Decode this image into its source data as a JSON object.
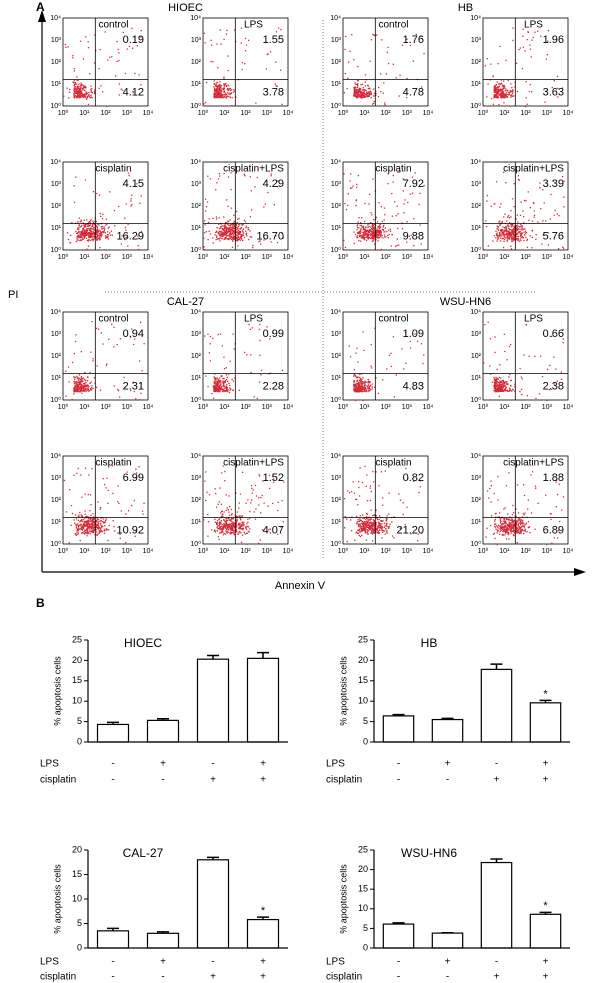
{
  "panel_a": {
    "label": "A",
    "y_axis_label": "PI",
    "x_axis_label": "Annexin V",
    "ticks": [
      "10⁰",
      "10¹",
      "10²",
      "10³",
      "10⁴"
    ],
    "groups": [
      {
        "name": "HIOEC",
        "plots": [
          {
            "title": "control",
            "upper_right": "0.19",
            "lower_right": "4.12"
          },
          {
            "title": "LPS",
            "upper_right": "1.55",
            "lower_right": "3.78"
          },
          {
            "title": "cisplatin",
            "upper_right": "4.15",
            "lower_right": "16.29"
          },
          {
            "title": "cisplatin+LPS",
            "upper_right": "4.29",
            "lower_right": "16.70"
          }
        ]
      },
      {
        "name": "HB",
        "plots": [
          {
            "title": "control",
            "upper_right": "1.76",
            "lower_right": "4.78"
          },
          {
            "title": "LPS",
            "upper_right": "1.96",
            "lower_right": "3.63"
          },
          {
            "title": "cisplatin",
            "upper_right": "7.92",
            "lower_right": "9.88"
          },
          {
            "title": "cisplatin+LPS",
            "upper_right": "3.39",
            "lower_right": "5.76"
          }
        ]
      },
      {
        "name": "CAL-27",
        "plots": [
          {
            "title": "control",
            "upper_right": "0.94",
            "lower_right": "2.31"
          },
          {
            "title": "LPS",
            "upper_right": "0.99",
            "lower_right": "2.28"
          },
          {
            "title": "cisplatin",
            "upper_right": "6.99",
            "lower_right": "10.92"
          },
          {
            "title": "cisplatin+LPS",
            "upper_right": "1.52",
            "lower_right": "4.07"
          }
        ]
      },
      {
        "name": "WSU-HN6",
        "plots": [
          {
            "title": "control",
            "upper_right": "1.09",
            "lower_right": "4.83"
          },
          {
            "title": "LPS",
            "upper_right": "0.66",
            "lower_right": "2.38"
          },
          {
            "title": "cisplatin",
            "upper_right": "0.82",
            "lower_right": "21.20"
          },
          {
            "title": "cisplatin+LPS",
            "upper_right": "1.88",
            "lower_right": "6.89"
          }
        ]
      }
    ]
  },
  "panel_b": {
    "label": "B"
  },
  "chart_data": [
    {
      "type": "bar",
      "title": "HIOEC",
      "y_label": "% apoptosis cells",
      "color": "#ffffff",
      "edge_color": "#000000",
      "values": [
        4.3,
        5.3,
        20.3,
        20.5
      ],
      "errors": [
        0.5,
        0.4,
        0.9,
        1.4
      ],
      "markers": [
        null,
        null,
        null,
        null
      ],
      "conditions": [
        {
          "name": "LPS",
          "signs": [
            "-",
            "+",
            "-",
            "+"
          ]
        },
        {
          "name": "cisplatin",
          "signs": [
            "-",
            "-",
            "+",
            "+"
          ]
        }
      ],
      "ylim": [
        0,
        25
      ],
      "yticks": [
        0,
        5,
        10,
        15,
        20,
        25
      ]
    },
    {
      "type": "bar",
      "title": "HB",
      "y_label": "% apoptosis cells",
      "color": "#ffffff",
      "edge_color": "#000000",
      "values": [
        6.4,
        5.5,
        17.8,
        9.6
      ],
      "errors": [
        0.3,
        0.3,
        1.3,
        0.6
      ],
      "markers": [
        null,
        null,
        null,
        "*"
      ],
      "conditions": [
        {
          "name": "LPS",
          "signs": [
            "-",
            "+",
            "-",
            "+"
          ]
        },
        {
          "name": "cisplatin",
          "signs": [
            "-",
            "-",
            "+",
            "+"
          ]
        }
      ],
      "ylim": [
        0,
        25
      ],
      "yticks": [
        0,
        5,
        10,
        15,
        20,
        25
      ]
    },
    {
      "type": "bar",
      "title": "CAL-27",
      "y_label": "% apoptosis cells",
      "color": "#ffffff",
      "edge_color": "#000000",
      "values": [
        3.5,
        3.0,
        18.0,
        5.8
      ],
      "errors": [
        0.5,
        0.3,
        0.5,
        0.5
      ],
      "markers": [
        null,
        null,
        null,
        "*"
      ],
      "conditions": [
        {
          "name": "LPS",
          "signs": [
            "-",
            "+",
            "-",
            "+"
          ]
        },
        {
          "name": "cisplatin",
          "signs": [
            "-",
            "-",
            "+",
            "+"
          ]
        }
      ],
      "ylim": [
        0,
        20
      ],
      "yticks": [
        0,
        5,
        10,
        15,
        20
      ]
    },
    {
      "type": "bar",
      "title": "WSU-HN6",
      "y_label": "% apoptosis cells",
      "color": "#ffffff",
      "edge_color": "#000000",
      "values": [
        6.1,
        3.8,
        21.8,
        8.6
      ],
      "errors": [
        0.3,
        0.1,
        0.9,
        0.5
      ],
      "markers": [
        null,
        null,
        null,
        "*"
      ],
      "conditions": [
        {
          "name": "LPS",
          "signs": [
            "-",
            "+",
            "-",
            "+"
          ]
        },
        {
          "name": "cisplatin",
          "signs": [
            "-",
            "-",
            "+",
            "+"
          ]
        }
      ],
      "ylim": [
        0,
        25
      ],
      "yticks": [
        0,
        5,
        10,
        15,
        20,
        25
      ]
    }
  ]
}
